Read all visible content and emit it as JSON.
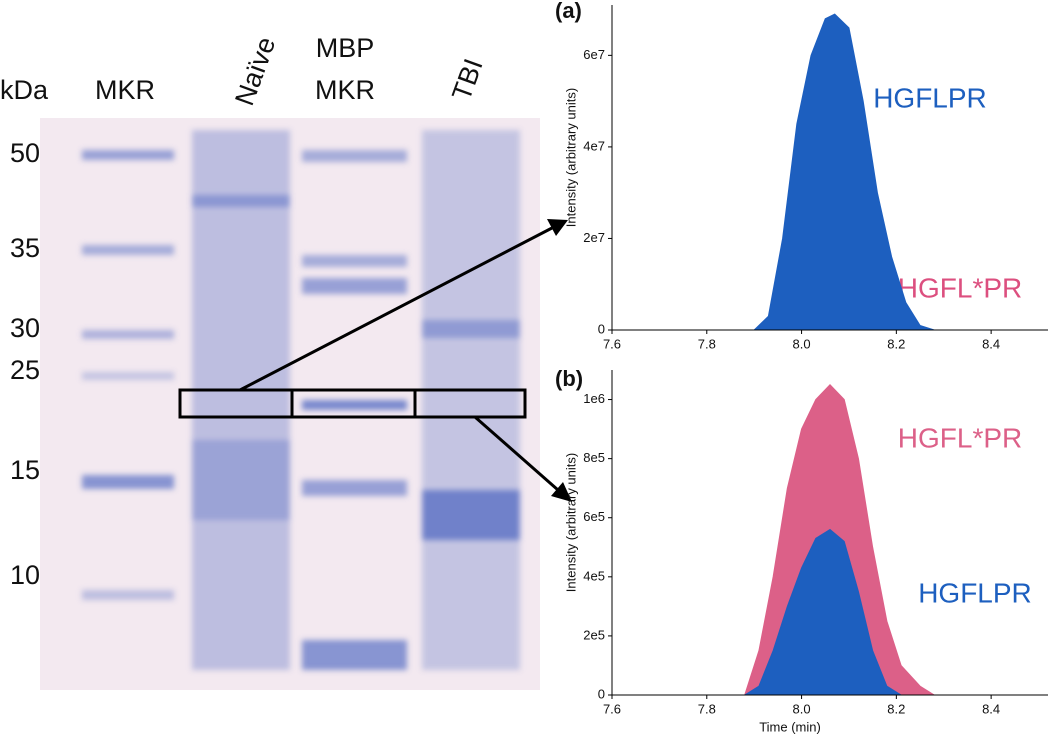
{
  "gel": {
    "kda_label": "kDa",
    "lanes": [
      {
        "lines": [
          "MKR"
        ]
      },
      {
        "lines": [
          "Naïve"
        ]
      },
      {
        "lines": [
          "MBP",
          "MKR"
        ]
      },
      {
        "lines": [
          "TBI"
        ]
      }
    ],
    "markers": [
      50,
      35,
      30,
      25,
      15,
      10
    ]
  },
  "chart_data": [
    {
      "type": "area",
      "panel_label": "(a)",
      "y_label": "Intensity (arbitrary units)",
      "xlim": [
        7.6,
        8.52
      ],
      "xticks": [
        7.6,
        7.8,
        {
          "value": 8,
          "label": "8.0"
        },
        8.2,
        8.4
      ],
      "ylim": [
        0,
        71000000
      ],
      "yticks": [
        0,
        {
          "value": 20000000,
          "label": "2e7"
        },
        {
          "value": 40000000,
          "label": "4e7"
        },
        {
          "value": 60000000,
          "label": "6e7"
        }
      ],
      "x": [
        7.6,
        7.9,
        7.93,
        7.96,
        7.99,
        8.02,
        8.05,
        8.07,
        8.1,
        8.13,
        8.16,
        8.19,
        8.22,
        8.25,
        8.28,
        8.52
      ],
      "series": [
        {
          "name": "HGFL*PR",
          "color": "#dc4f7f",
          "values": [
            0,
            0,
            300000,
            700000,
            1000000,
            1300000,
            1500000,
            1500000,
            1400000,
            1200000,
            900000,
            500000,
            0,
            0,
            0,
            0
          ]
        },
        {
          "name": "HGFLPR",
          "color": "#1d5fbf",
          "values": [
            0,
            0,
            3000000,
            20000000,
            45000000,
            60000000,
            68000000,
            69000000,
            66000000,
            50000000,
            30000000,
            16000000,
            6000000,
            1000000,
            0,
            0
          ]
        }
      ]
    },
    {
      "type": "area",
      "panel_label": "(b)",
      "y_label": "Intensity (arbitrary units)",
      "x_label": "Time (min)",
      "xlim": [
        7.6,
        8.52
      ],
      "xticks": [
        7.6,
        7.8,
        {
          "value": 8,
          "label": "8.0"
        },
        8.2,
        8.4
      ],
      "ylim": [
        0,
        1100000
      ],
      "yticks": [
        0,
        {
          "value": 200000,
          "label": "2e5"
        },
        {
          "value": 400000,
          "label": "4e5"
        },
        {
          "value": 600000,
          "label": "6e5"
        },
        {
          "value": 800000,
          "label": "8e5"
        },
        {
          "value": 1000000,
          "label": "1e6"
        }
      ],
      "x": [
        7.6,
        7.88,
        7.91,
        7.94,
        7.97,
        8.0,
        8.03,
        8.06,
        8.09,
        8.12,
        8.15,
        8.18,
        8.21,
        8.25,
        8.28,
        8.52
      ],
      "series": [
        {
          "name": "HGFL*PR",
          "color": "#dc6088",
          "values": [
            0,
            0,
            150000,
            400000,
            700000,
            900000,
            1000000,
            1050000,
            1000000,
            800000,
            500000,
            250000,
            100000,
            30000,
            0,
            0
          ]
        },
        {
          "name": "HGFLPR",
          "color": "#1d5fbf",
          "values": [
            0,
            0,
            30000,
            150000,
            300000,
            430000,
            530000,
            560000,
            520000,
            350000,
            150000,
            30000,
            0,
            0,
            0,
            0
          ]
        }
      ]
    }
  ]
}
